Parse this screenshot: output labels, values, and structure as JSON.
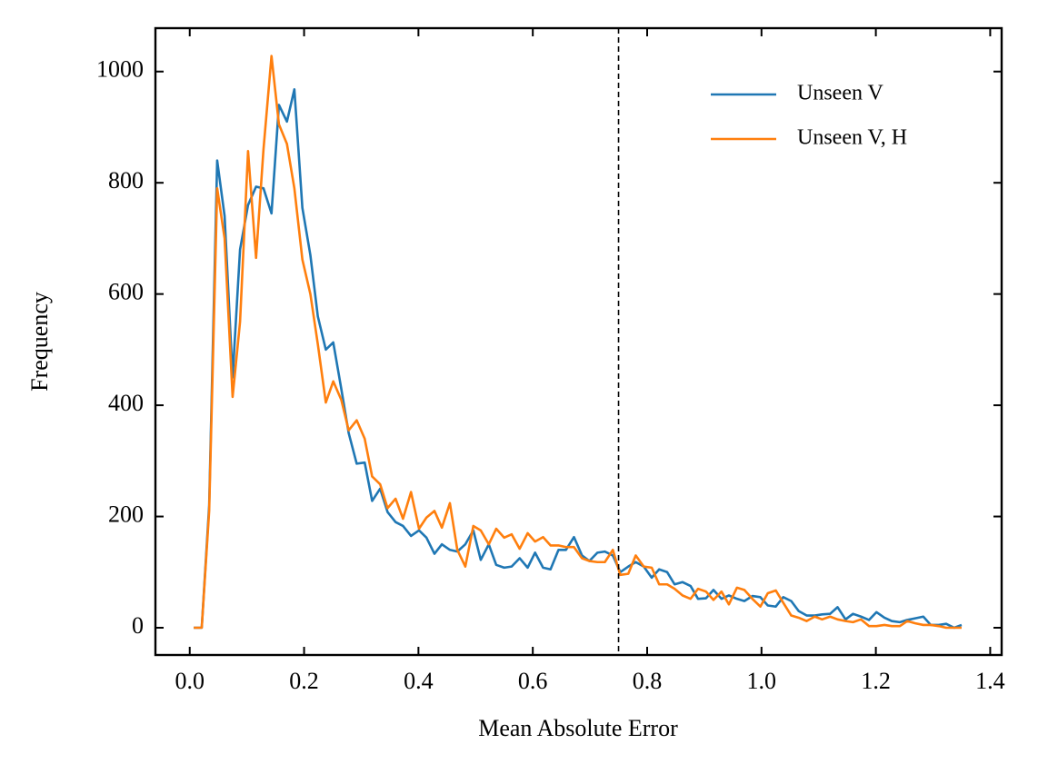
{
  "chart_data": {
    "type": "line",
    "xlabel": "Mean Absolute Error",
    "ylabel": "Frequency",
    "x": [
      0.007,
      0.021,
      0.034,
      0.048,
      0.061,
      0.075,
      0.088,
      0.102,
      0.116,
      0.129,
      0.143,
      0.156,
      0.17,
      0.183,
      0.197,
      0.211,
      0.224,
      0.238,
      0.251,
      0.265,
      0.278,
      0.292,
      0.306,
      0.319,
      0.333,
      0.346,
      0.36,
      0.373,
      0.387,
      0.401,
      0.414,
      0.428,
      0.441,
      0.455,
      0.468,
      0.482,
      0.496,
      0.509,
      0.523,
      0.536,
      0.55,
      0.563,
      0.577,
      0.591,
      0.604,
      0.618,
      0.631,
      0.645,
      0.658,
      0.672,
      0.686,
      0.699,
      0.713,
      0.726,
      0.74,
      0.753,
      0.767,
      0.78,
      0.794,
      0.808,
      0.821,
      0.835,
      0.848,
      0.862,
      0.876,
      0.889,
      0.903,
      0.916,
      0.93,
      0.943,
      0.957,
      0.97,
      0.984,
      0.998,
      1.011,
      1.025,
      1.038,
      1.052,
      1.065,
      1.079,
      1.093,
      1.106,
      1.12,
      1.133,
      1.147,
      1.16,
      1.174,
      1.188,
      1.201,
      1.215,
      1.228,
      1.242,
      1.255,
      1.269,
      1.283,
      1.296,
      1.31,
      1.323,
      1.337,
      1.35
    ],
    "series": [
      {
        "name": "Unseen V",
        "color": "#1f77b4",
        "values": [
          0,
          0,
          220,
          840,
          740,
          450,
          680,
          760,
          793,
          790,
          745,
          940,
          910,
          968,
          755,
          670,
          560,
          500,
          513,
          430,
          350,
          295,
          297,
          228,
          250,
          208,
          190,
          183,
          165,
          175,
          162,
          133,
          150,
          140,
          137,
          150,
          175,
          122,
          150,
          113,
          108,
          110,
          125,
          108,
          135,
          108,
          105,
          140,
          140,
          163,
          130,
          120,
          135,
          137,
          130,
          100,
          110,
          118,
          110,
          90,
          105,
          100,
          78,
          82,
          75,
          52,
          53,
          68,
          52,
          58,
          52,
          48,
          57,
          55,
          40,
          38,
          55,
          48,
          30,
          22,
          22,
          24,
          25,
          37,
          15,
          25,
          20,
          14,
          28,
          18,
          12,
          10,
          14,
          17,
          20,
          5,
          5,
          7,
          0,
          5
        ]
      },
      {
        "name": "Unseen V, H",
        "color": "#ff7f0e",
        "values": [
          0,
          0,
          210,
          790,
          700,
          415,
          550,
          857,
          665,
          860,
          1028,
          905,
          870,
          790,
          662,
          600,
          510,
          405,
          443,
          410,
          355,
          373,
          340,
          272,
          258,
          215,
          232,
          196,
          244,
          178,
          198,
          210,
          180,
          224,
          140,
          110,
          183,
          175,
          150,
          178,
          162,
          168,
          142,
          170,
          155,
          163,
          148,
          148,
          145,
          145,
          125,
          120,
          118,
          118,
          140,
          95,
          97,
          130,
          110,
          108,
          78,
          78,
          70,
          58,
          52,
          70,
          65,
          50,
          65,
          42,
          72,
          68,
          52,
          38,
          62,
          67,
          45,
          22,
          18,
          12,
          20,
          15,
          20,
          15,
          12,
          10,
          15,
          3,
          3,
          5,
          3,
          3,
          12,
          8,
          5,
          5,
          3,
          0,
          0,
          0
        ]
      }
    ],
    "vline": 0.75,
    "xlim": [
      -0.06,
      1.42
    ],
    "ylim": [
      -49,
      1078
    ],
    "xticks": [
      {
        "value": 0,
        "label": "0.0"
      },
      0.2,
      0.4,
      0.6,
      0.8,
      {
        "value": 1,
        "label": "1.0"
      },
      1.2,
      1.4
    ],
    "yticks": [
      0,
      200,
      400,
      600,
      800,
      1000
    ],
    "legend": "upper right",
    "grid": false
  }
}
